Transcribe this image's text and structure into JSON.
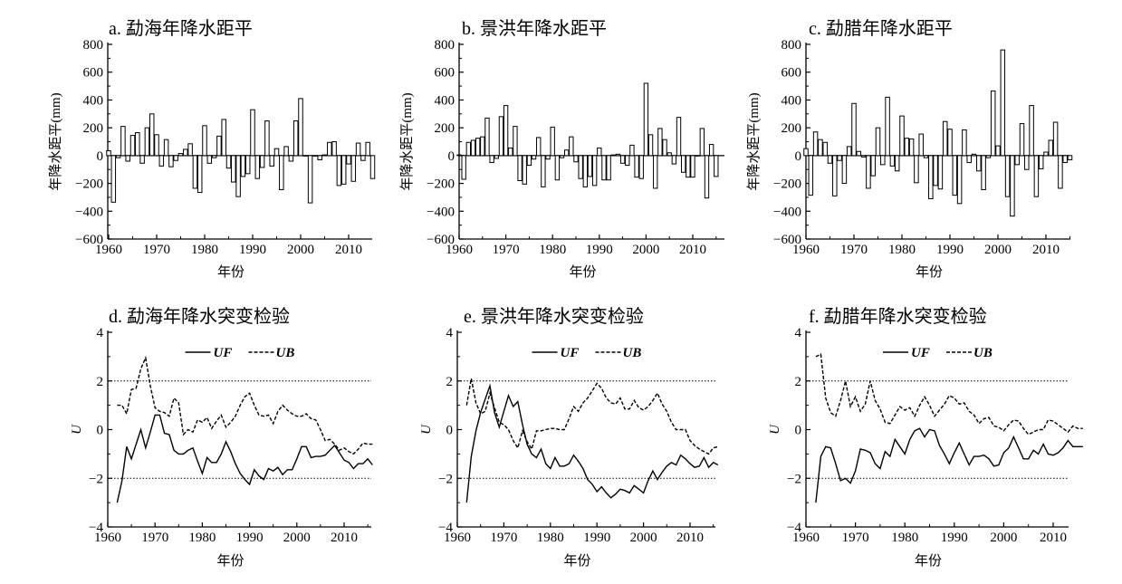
{
  "chart_data": [
    {
      "id": "a",
      "type": "bar",
      "title": "a. 勐海年降水距平",
      "xlabel": "年份",
      "ylabel": "年降水距平(mm)",
      "x_start": 1960,
      "xlim": [
        1959.5,
        2016.5
      ],
      "ylim": [
        -600,
        800
      ],
      "xticks": [
        "1960",
        "1970",
        "1980",
        "1990",
        "2000",
        "2010"
      ],
      "yticks": [
        "800",
        "600",
        "400",
        "200",
        "0",
        "−200",
        "−400",
        "−600"
      ],
      "values": [
        35,
        -335,
        -15,
        210,
        -40,
        145,
        165,
        -55,
        200,
        300,
        150,
        -75,
        115,
        -80,
        -35,
        15,
        45,
        85,
        -235,
        -265,
        215,
        -55,
        -15,
        140,
        260,
        -90,
        -190,
        -295,
        -150,
        -130,
        330,
        -165,
        -85,
        250,
        -75,
        50,
        -245,
        65,
        -40,
        250,
        410,
        0,
        -340,
        0,
        -30,
        5,
        95,
        100,
        -215,
        -205,
        -60,
        -185,
        90,
        -35,
        95,
        -165
      ]
    },
    {
      "id": "b",
      "type": "bar",
      "title": "b. 景洪年降水距平",
      "xlabel": "年份",
      "ylabel": "年降水距平(mm)",
      "x_start": 1960,
      "xlim": [
        1959.5,
        2016.5
      ],
      "ylim": [
        -600,
        800
      ],
      "xticks": [
        "1960",
        "1970",
        "1980",
        "1990",
        "2000",
        "2010"
      ],
      "yticks": [
        "800",
        "600",
        "400",
        "200",
        "0",
        "−200",
        "−400",
        "−600"
      ],
      "values": [
        5,
        -170,
        95,
        110,
        125,
        135,
        270,
        -50,
        -20,
        280,
        360,
        55,
        210,
        -180,
        -205,
        -70,
        -25,
        130,
        -225,
        -25,
        205,
        -175,
        -15,
        40,
        135,
        -45,
        -165,
        -225,
        -150,
        -215,
        55,
        -175,
        -175,
        5,
        10,
        -55,
        -70,
        75,
        -155,
        -165,
        520,
        150,
        -235,
        195,
        115,
        20,
        -60,
        275,
        -120,
        -155,
        -155,
        0,
        195,
        -305,
        80,
        -150
      ]
    },
    {
      "id": "c",
      "type": "bar",
      "title": "c. 勐腊年降水距平",
      "xlabel": "年份",
      "ylabel": "年降水距平(mm)",
      "x_start": 1960,
      "xlim": [
        1959.5,
        2016.5
      ],
      "ylim": [
        -600,
        800
      ],
      "xticks": [
        "1960",
        "1970",
        "1980",
        "1990",
        "2000",
        "2010"
      ],
      "yticks": [
        "800",
        "600",
        "400",
        "200",
        "0",
        "−200",
        "−400",
        "−600"
      ],
      "values": [
        50,
        -285,
        170,
        115,
        95,
        -55,
        -290,
        -35,
        -200,
        65,
        375,
        30,
        -10,
        -235,
        -145,
        200,
        -65,
        420,
        -75,
        -110,
        285,
        125,
        120,
        -195,
        155,
        -15,
        -310,
        -215,
        -240,
        245,
        190,
        -285,
        -345,
        185,
        -50,
        10,
        -110,
        -245,
        -15,
        465,
        70,
        760,
        -295,
        -435,
        -65,
        230,
        -100,
        360,
        -295,
        -95,
        25,
        110,
        240,
        -235,
        -50,
        -30
      ]
    },
    {
      "id": "d",
      "type": "line",
      "title": "d. 勐海年降水突变检验",
      "xlabel": "年份",
      "ylabel": "U",
      "x_start": 1962,
      "xlim": [
        1960,
        2017
      ],
      "ylim": [
        -4,
        4
      ],
      "xticks": [
        "1960",
        "1970",
        "1980",
        "1990",
        "2000",
        "2010"
      ],
      "yticks": [
        "4",
        "2",
        "0",
        "−2",
        "−4"
      ],
      "reference_lines": [
        2,
        -2
      ],
      "legend": [
        "UF",
        "UB"
      ],
      "legend_position": "top-center",
      "series": [
        {
          "name": "UF",
          "style": "solid",
          "values": [
            -3,
            -2.1,
            -0.7,
            -1.2,
            -0.6,
            0,
            -0.75,
            -0.1,
            0.6,
            0.6,
            -0.15,
            -0.2,
            -0.85,
            -1.0,
            -1.0,
            -0.85,
            -0.75,
            -1.3,
            -1.8,
            -1.15,
            -1.35,
            -1.35,
            -1.0,
            -0.5,
            -0.9,
            -1.4,
            -1.8,
            -2.05,
            -2.25,
            -1.65,
            -1.9,
            -2.05,
            -1.6,
            -1.7,
            -1.55,
            -1.85,
            -1.65,
            -1.65,
            -1.2,
            -0.7,
            -0.7,
            -1.15,
            -1.1,
            -1.1,
            -1.05,
            -0.85,
            -0.65,
            -0.95,
            -1.25,
            -1.35,
            -1.6,
            -1.4,
            -1.4,
            -1.2,
            -1.45
          ]
        },
        {
          "name": "UB",
          "style": "dashed",
          "values": [
            1.0,
            1.0,
            0.65,
            1.65,
            1.7,
            2.5,
            2.95,
            1.8,
            0.9,
            0.75,
            0.7,
            0.55,
            1.3,
            1.1,
            -0.2,
            0,
            -0.1,
            0.4,
            0.3,
            0.5,
            0.05,
            0.35,
            0.6,
            0.1,
            0.3,
            0.55,
            1.0,
            1.35,
            1.5,
            1.0,
            0.6,
            0.55,
            0.6,
            0.25,
            0.75,
            1.0,
            0.8,
            0.65,
            0.55,
            0.55,
            0.65,
            0.45,
            0.4,
            0,
            -0.45,
            -0.4,
            -0.6,
            -0.85,
            -0.75,
            -0.9,
            -1.0,
            -0.8,
            -0.55,
            -0.6,
            -0.6
          ]
        }
      ]
    },
    {
      "id": "e",
      "type": "line",
      "title": "e. 景洪年降水突变检验",
      "xlabel": "年份",
      "ylabel": "U",
      "x_start": 1962,
      "xlim": [
        1960,
        2017
      ],
      "ylim": [
        -4,
        4
      ],
      "xticks": [
        "1960",
        "1970",
        "1980",
        "1990",
        "2000",
        "2010"
      ],
      "yticks": [
        "4",
        "2",
        "0",
        "−2",
        "−4"
      ],
      "reference_lines": [
        2,
        -2
      ],
      "legend": [
        "UF",
        "UB"
      ],
      "legend_position": "top-center",
      "series": [
        {
          "name": "UF",
          "style": "solid",
          "values": [
            -3,
            -1.1,
            -0.05,
            0.7,
            1.25,
            1.8,
            0.7,
            0.1,
            0.75,
            1.4,
            0.95,
            1.15,
            0.2,
            -0.6,
            -1.0,
            -1.15,
            -0.8,
            -1.4,
            -1.6,
            -1.15,
            -1.5,
            -1.5,
            -1.4,
            -1.05,
            -1.3,
            -1.6,
            -2.05,
            -2.25,
            -2.55,
            -2.35,
            -2.6,
            -2.8,
            -2.65,
            -2.45,
            -2.5,
            -2.6,
            -2.3,
            -2.45,
            -2.6,
            -2.1,
            -1.7,
            -2.05,
            -1.75,
            -1.5,
            -1.35,
            -1.45,
            -1.05,
            -1.2,
            -1.4,
            -1.55,
            -1.5,
            -1.15,
            -1.55,
            -1.35,
            -1.45
          ]
        },
        {
          "name": "UB",
          "style": "dashed",
          "values": [
            1.0,
            2.1,
            1.1,
            0.65,
            0.75,
            1.5,
            0.9,
            0.3,
            0.2,
            0,
            -0.45,
            -0.75,
            -0.05,
            -0.5,
            -0.8,
            -0.05,
            -0.05,
            0,
            0.05,
            0.05,
            0,
            0,
            0.45,
            0.95,
            0.75,
            1.1,
            1.3,
            1.6,
            1.9,
            1.7,
            1.3,
            1.1,
            1.05,
            1.3,
            0.85,
            0.85,
            1.2,
            0.9,
            0.8,
            0.95,
            1.2,
            1.5,
            1.05,
            0.75,
            0.3,
            0,
            0,
            0,
            -0.45,
            -0.65,
            -0.8,
            -0.9,
            -1.0,
            -0.75,
            -0.7
          ]
        }
      ]
    },
    {
      "id": "f",
      "type": "line",
      "title": "f. 勐腊年降水突变检验",
      "xlabel": "年份",
      "ylabel": "U",
      "x_start": 1962,
      "xlim": [
        1960,
        2017
      ],
      "ylim": [
        -4,
        4
      ],
      "xticks": [
        "1960",
        "1970",
        "1980",
        "1990",
        "2000",
        "2010"
      ],
      "yticks": [
        "4",
        "2",
        "0",
        "−2",
        "−4"
      ],
      "reference_lines": [
        2,
        -2
      ],
      "legend": [
        "UF",
        "UB"
      ],
      "legend_position": "top-center",
      "series": [
        {
          "name": "UF",
          "style": "solid",
          "values": [
            -3,
            -1.1,
            -0.7,
            -0.75,
            -1.4,
            -2.1,
            -2.0,
            -2.2,
            -1.7,
            -0.8,
            -0.85,
            -0.95,
            -1.4,
            -1.6,
            -0.9,
            -1.1,
            -0.4,
            -0.7,
            -1.0,
            -0.4,
            -0.05,
            0.05,
            -0.3,
            0,
            -0.05,
            -0.65,
            -1.0,
            -1.4,
            -0.95,
            -0.55,
            -1.0,
            -1.45,
            -1.1,
            -1.1,
            -1.05,
            -1.2,
            -1.5,
            -1.45,
            -0.95,
            -0.75,
            -0.3,
            -0.75,
            -1.2,
            -1.2,
            -0.85,
            -1.0,
            -0.6,
            -1.0,
            -1.05,
            -0.95,
            -0.75,
            -0.45,
            -0.7,
            -0.7,
            -0.7
          ]
        },
        {
          "name": "UB",
          "style": "dashed",
          "values": [
            3.0,
            3.1,
            1.3,
            0.7,
            0.55,
            1.2,
            2.0,
            0.95,
            1.35,
            0.75,
            1.05,
            2.0,
            1.2,
            0.85,
            0.3,
            0.25,
            0.6,
            0.95,
            0.8,
            0.9,
            0.55,
            1.0,
            1.35,
            1.0,
            0.55,
            0.8,
            1.05,
            1.4,
            1.3,
            1.05,
            1.1,
            0.75,
            0.6,
            0.25,
            0.45,
            0.5,
            0.15,
            0.1,
            -0.05,
            0.2,
            0.4,
            0.35,
            0.05,
            -0.2,
            -0.1,
            0,
            0,
            0.4,
            0.35,
            0.2,
            0.05,
            -0.1,
            0.15,
            0.05,
            0.05
          ]
        }
      ]
    }
  ]
}
